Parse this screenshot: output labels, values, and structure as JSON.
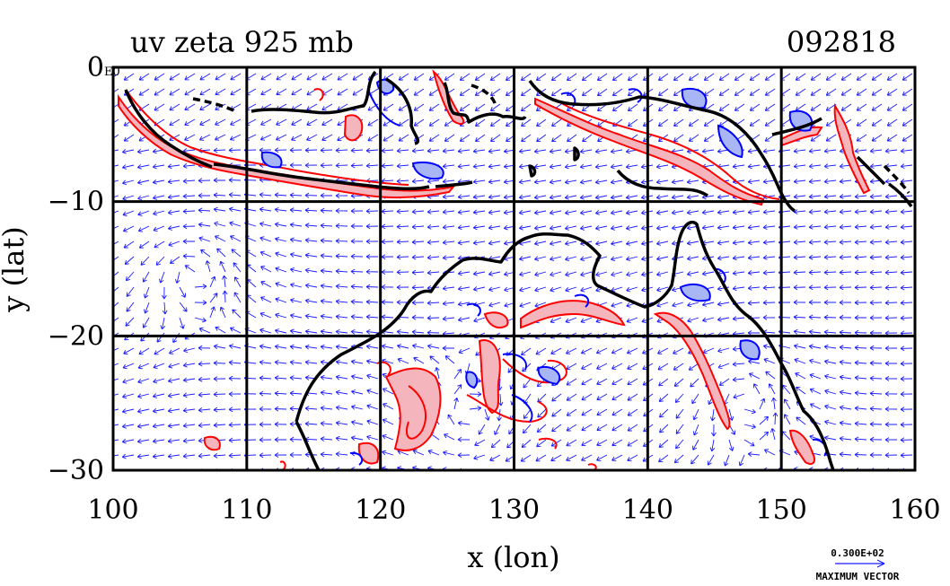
{
  "title_left": "uv zeta 925 mb",
  "title_right": "092818",
  "x_axis": {
    "label": "x (lon)",
    "range": [
      100,
      160
    ],
    "ticks": [
      "100",
      "110",
      "120",
      "130",
      "140",
      "150",
      "160"
    ]
  },
  "y_axis": {
    "label": "y (lat)",
    "range": [
      -30,
      0
    ],
    "ticks": [
      "0",
      "−10",
      "−20",
      "−30"
    ]
  },
  "corner_label": "E0",
  "vector_key": {
    "value": "0.300E+02",
    "label": "MAXIMUM VECTOR"
  },
  "colors": {
    "vectors": "#1a1aff",
    "positive_contour": "#ff0000",
    "negative_contour": "#0000ff",
    "positive_fill": "#f4b6bc",
    "negative_fill": "#a9b6f5",
    "coastline": "#000000",
    "grid": "#000000"
  }
}
